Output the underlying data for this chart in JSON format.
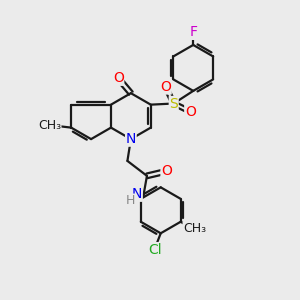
{
  "background_color": "#ebebeb",
  "bond_color": "#1a1a1a",
  "bond_width": 1.6,
  "atom_colors": {
    "N": "#0000ee",
    "O": "#ff0000",
    "S": "#bbbb00",
    "F": "#cc00cc",
    "Cl": "#22aa22",
    "H": "#888888",
    "C": "#1a1a1a"
  },
  "font_size_atom": 10,
  "font_size_small": 9
}
